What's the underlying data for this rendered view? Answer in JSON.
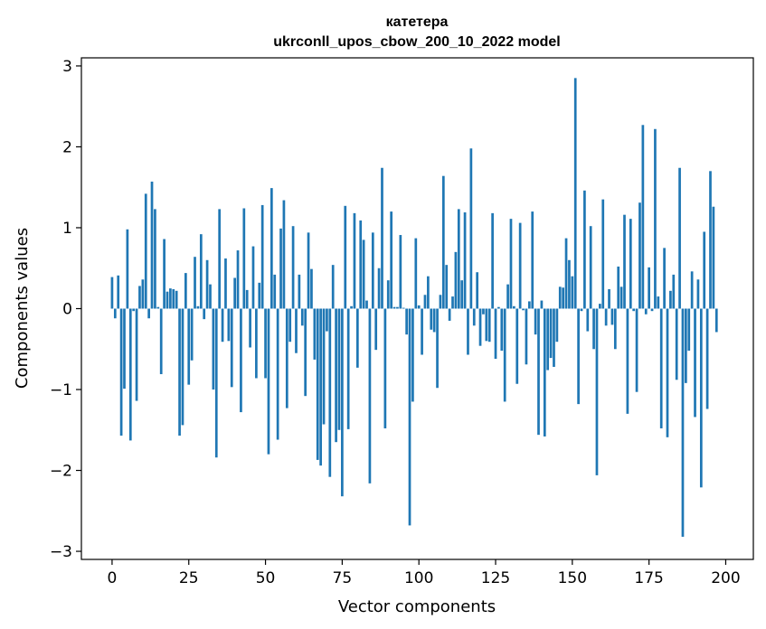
{
  "chart_data": {
    "type": "bar",
    "title": "катетера",
    "subtitle": "ukrconll_upos_cbow_200_10_2022 model",
    "xlabel": "Vector components",
    "ylabel": "Components values",
    "xlim": [
      -10,
      209
    ],
    "ylim": [
      -3.1,
      3.1
    ],
    "xticks": [
      0,
      25,
      50,
      75,
      100,
      125,
      150,
      175,
      200
    ],
    "xtick_labels": [
      "0",
      "25",
      "50",
      "75",
      "100",
      "125",
      "150",
      "175",
      "200"
    ],
    "yticks": [
      3,
      2,
      1,
      0,
      -1,
      -2,
      -3
    ],
    "ytick_labels": [
      "3",
      "2",
      "1",
      "0",
      "−1",
      "−2",
      "−3"
    ],
    "bar_color": "#1f77b4",
    "grid": false,
    "values": [
      0.39,
      -0.12,
      0.41,
      -1.57,
      -0.99,
      0.98,
      -1.63,
      -0.03,
      -1.14,
      0.28,
      0.36,
      1.42,
      -0.12,
      1.57,
      1.23,
      0.02,
      -0.81,
      0.86,
      0.21,
      0.25,
      0.24,
      0.22,
      -1.57,
      -1.44,
      0.44,
      -0.94,
      -0.64,
      0.64,
      0.03,
      0.92,
      -0.13,
      0.6,
      0.3,
      -1.0,
      -1.84,
      1.23,
      -0.41,
      0.62,
      -0.4,
      -0.97,
      0.38,
      0.72,
      -1.28,
      1.24,
      0.23,
      -0.48,
      0.77,
      -0.86,
      0.32,
      1.28,
      -0.86,
      -1.8,
      1.49,
      0.42,
      -1.62,
      0.99,
      1.34,
      -1.23,
      -0.41,
      1.02,
      -0.55,
      0.42,
      -0.21,
      -1.08,
      0.94,
      0.49,
      -0.63,
      -1.87,
      -1.94,
      -1.43,
      -0.28,
      -2.08,
      0.54,
      -1.65,
      -1.5,
      -2.32,
      1.27,
      -1.49,
      0.03,
      1.18,
      -0.73,
      1.09,
      0.85,
      0.1,
      -2.16,
      0.94,
      -0.51,
      0.5,
      1.74,
      -1.48,
      0.35,
      1.2,
      0.02,
      0.02,
      0.91,
      0.01,
      -0.32,
      -2.68,
      -1.15,
      0.87,
      0.04,
      -0.57,
      0.17,
      0.4,
      -0.26,
      -0.29,
      -0.98,
      0.17,
      1.64,
      0.54,
      -0.15,
      0.15,
      0.7,
      1.23,
      0.35,
      1.19,
      -0.57,
      1.98,
      -0.21,
      0.45,
      -0.46,
      -0.07,
      -0.4,
      -0.41,
      1.18,
      -0.62,
      0.02,
      -0.52,
      -1.15,
      0.3,
      1.11,
      0.03,
      -0.93,
      1.06,
      -0.02,
      -0.69,
      0.09,
      1.2,
      -0.32,
      -1.56,
      0.1,
      -1.58,
      -0.76,
      -0.61,
      -0.72,
      -0.41,
      0.27,
      0.26,
      0.87,
      0.6,
      0.4,
      2.85,
      -1.18,
      -0.03,
      1.46,
      -0.28,
      1.02,
      -0.5,
      -2.06,
      0.06,
      1.35,
      -0.21,
      0.24,
      -0.2,
      -0.5,
      0.52,
      0.27,
      1.16,
      -1.3,
      1.11,
      -0.03,
      -1.03,
      1.31,
      2.27,
      -0.07,
      0.51,
      -0.03,
      2.22,
      0.15,
      -1.48,
      0.75,
      -1.59,
      0.22,
      0.42,
      -0.88,
      1.74,
      -2.82,
      -0.92,
      -0.52,
      0.46,
      -1.34,
      0.36,
      -2.21,
      0.95,
      -1.24,
      1.7,
      1.26,
      -0.29
    ]
  }
}
